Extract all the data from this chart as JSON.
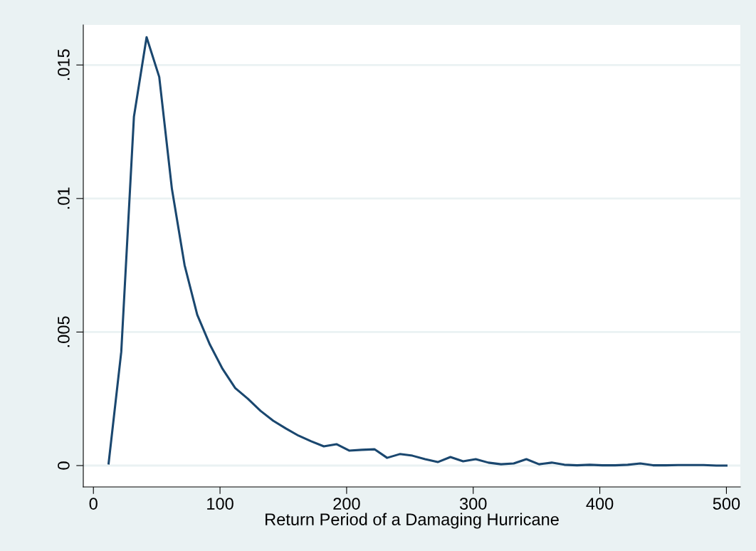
{
  "chart_data": {
    "type": "line",
    "xlabel": "Return Period of a Damaging Hurricane",
    "x": [
      12,
      22,
      32,
      42,
      52,
      62,
      72,
      82,
      92,
      102,
      112,
      122,
      132,
      142,
      152,
      162,
      172,
      182,
      192,
      202,
      212,
      222,
      232,
      242,
      252,
      262,
      272,
      282,
      292,
      302,
      312,
      322,
      332,
      342,
      352,
      362,
      372,
      382,
      392,
      402,
      412,
      422,
      432,
      442,
      452,
      462,
      472,
      482,
      492,
      500
    ],
    "series": [
      {
        "color": "#1a476f",
        "values": [
          8e-05,
          0.00426,
          0.01306,
          0.01604,
          0.01455,
          0.01036,
          0.00751,
          0.00565,
          0.00453,
          0.00362,
          0.0029,
          0.0025,
          0.00205,
          0.00168,
          0.00139,
          0.00112,
          0.00091,
          0.00072,
          0.0008,
          0.00056,
          0.00059,
          0.00061,
          0.00029,
          0.00043,
          0.00037,
          0.00024,
          0.00013,
          0.00032,
          0.00016,
          0.00024,
          0.00011,
          5e-05,
          8e-05,
          0.00024,
          5e-05,
          0.00011,
          3e-05,
          1e-05,
          3e-05,
          1e-05,
          1e-05,
          3e-05,
          8e-05,
          1e-05,
          1e-05,
          2e-05,
          2e-05,
          2e-05,
          0,
          0
        ]
      }
    ],
    "xlim": [
      -8,
      511
    ],
    "ylim": [
      -0.0008,
      0.0165
    ],
    "xticks": [
      0,
      100,
      200,
      300,
      400,
      500
    ],
    "yticks": [
      {
        "value": 0,
        "label": "0"
      },
      {
        "value": 0.005,
        "label": ".005"
      },
      {
        "value": 0.01,
        "label": ".01"
      },
      {
        "value": 0.015,
        "label": ".015"
      }
    ],
    "grid": "y",
    "marker": "none",
    "line_style": "solid",
    "legend": false
  }
}
